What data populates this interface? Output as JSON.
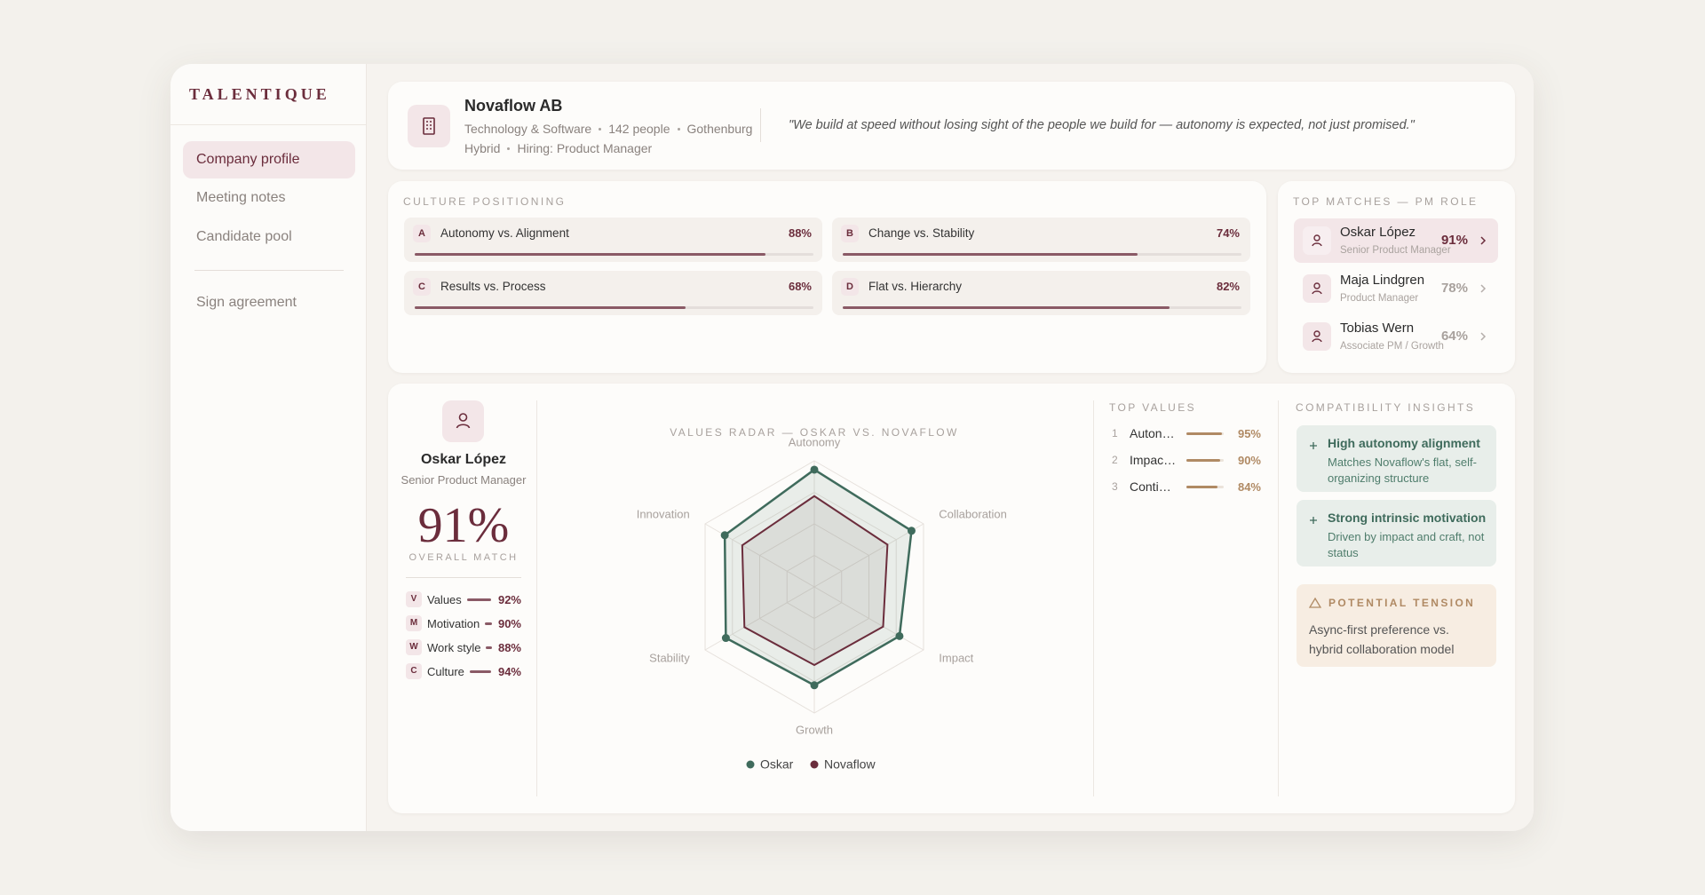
{
  "sidebar": {
    "brand": "TALENTIQUE",
    "nav": [
      "Company profile",
      "Meeting notes",
      "Candidate pool"
    ],
    "secondary": "Sign agreement"
  },
  "company": {
    "name": "Novaflow AB",
    "meta": [
      "Technology & Software",
      "142 people",
      "Gothenburg"
    ],
    "meta2": [
      "Hybrid",
      "Hiring: Product Manager"
    ],
    "quote": "\"We build at speed without losing sight of the people we build for — autonomy is expected, not just promised.\""
  },
  "culture": {
    "title": "CULTURE POSITIONING",
    "items": [
      {
        "letter": "A",
        "label": "Autonomy vs. Alignment",
        "value": 88,
        "value_label": "88%"
      },
      {
        "letter": "B",
        "label": "Change vs. Stability",
        "value": 74,
        "value_label": "74%"
      },
      {
        "letter": "C",
        "label": "Results vs. Process",
        "value": 68,
        "value_label": "68%"
      },
      {
        "letter": "D",
        "label": "Flat vs. Hierarchy",
        "value": 82,
        "value_label": "82%"
      }
    ]
  },
  "matches": {
    "title": "TOP MATCHES — PM ROLE",
    "items": [
      {
        "name": "Oskar López",
        "role": "Senior Product Manager",
        "score": "91%"
      },
      {
        "name": "Maja Lindgren",
        "role": "Product Manager",
        "score": "78%"
      },
      {
        "name": "Tobias Wern",
        "role": "Associate PM / Growth",
        "score": "64%"
      }
    ]
  },
  "candidate": {
    "name": "Oskar López",
    "role": "Senior Product Manager",
    "match": "91%",
    "match_caption": "OVERALL MATCH",
    "scores": [
      {
        "letter": "V",
        "label": "Values",
        "value": 92,
        "value_label": "92%"
      },
      {
        "letter": "M",
        "label": "Motivation",
        "value": 90,
        "value_label": "90%"
      },
      {
        "letter": "W",
        "label": "Work style",
        "value": 88,
        "value_label": "88%"
      },
      {
        "letter": "C",
        "label": "Culture",
        "value": 94,
        "value_label": "94%"
      }
    ]
  },
  "chart_data": {
    "type": "radar",
    "title": "VALUES RADAR — OSKAR VS. NOVAFLOW",
    "categories": [
      "Autonomy",
      "Collaboration",
      "Impact",
      "Growth",
      "Stability",
      "Innovation"
    ],
    "series": [
      {
        "name": "Oskar",
        "color": "#3f6b5c",
        "values": [
          93,
          89,
          78,
          78,
          81,
          82
        ]
      },
      {
        "name": "Novaflow",
        "color": "#6b2d3c",
        "values": [
          72,
          67,
          63,
          62,
          64,
          66
        ]
      }
    ],
    "rlim": [
      0,
      100
    ],
    "rticks": [
      25,
      50,
      75,
      100
    ],
    "legend": "bottom"
  },
  "top_values": {
    "title": "TOP VALUES",
    "items": [
      {
        "rank": 1,
        "label": "Autonomy",
        "value": 95,
        "value_label": "95%"
      },
      {
        "rank": 2,
        "label": "Impact-driven work",
        "value": 90,
        "value_label": "90%"
      },
      {
        "rank": 3,
        "label": "Continuous learning",
        "value": 84,
        "value_label": "84%"
      }
    ]
  },
  "insights": {
    "title": "COMPATIBILITY INSIGHTS",
    "items": [
      {
        "title": "High autonomy alignment",
        "text": "Matches Novaflow's flat, self-organizing structure"
      },
      {
        "title": "Strong intrinsic motivation",
        "text": "Driven by impact and craft, not status"
      }
    ],
    "tension": {
      "title": "POTENTIAL TENSION",
      "text": "Async-first preference vs. hybrid collaboration model"
    }
  }
}
